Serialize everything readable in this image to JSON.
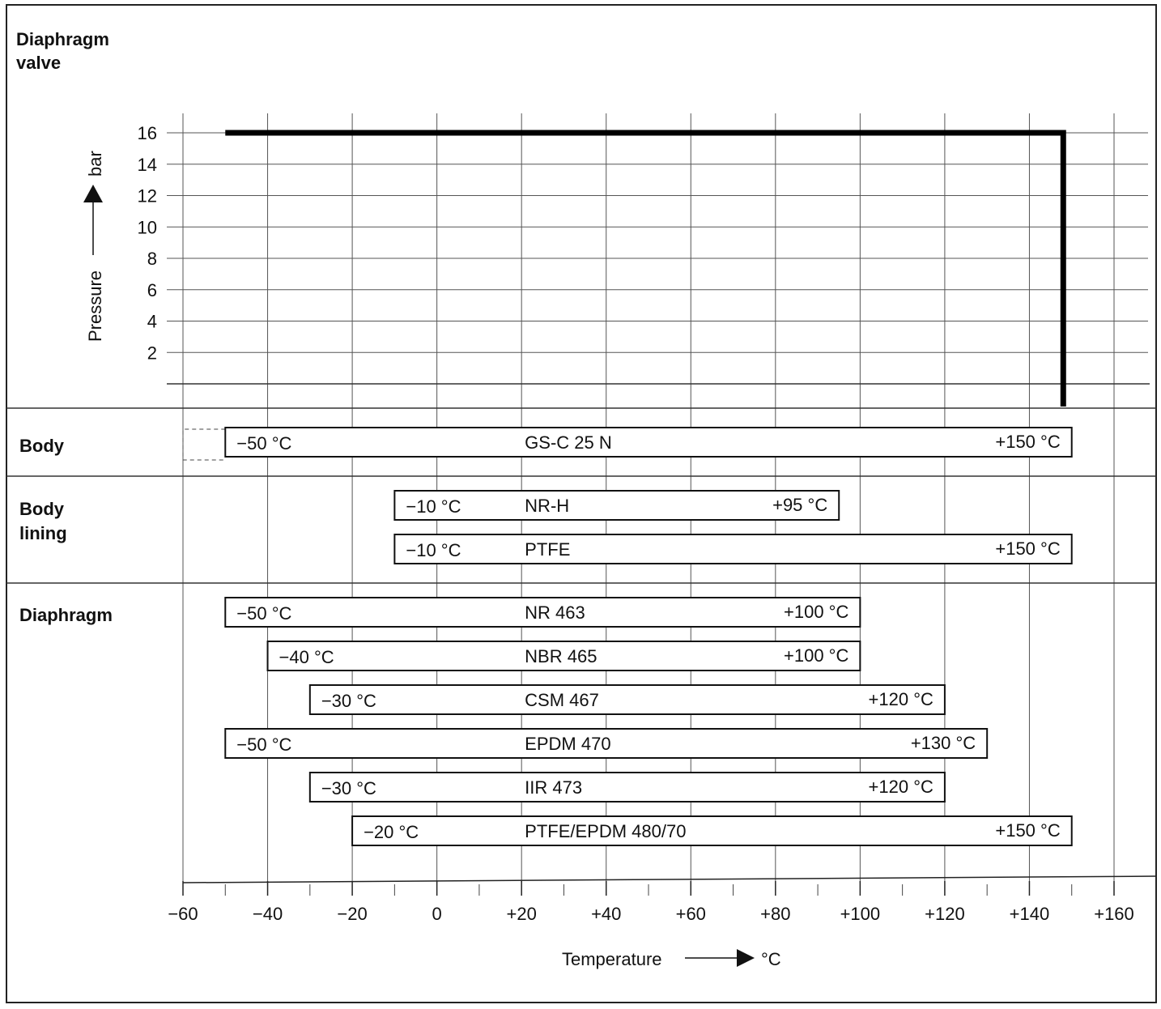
{
  "chart_data": {
    "type": "bar",
    "title": "Diaphragm valve",
    "pressure_axis": {
      "label": "Pressure",
      "unit": "bar",
      "ticks": [
        2,
        4,
        6,
        8,
        10,
        12,
        14,
        16
      ],
      "range": [
        0,
        16
      ]
    },
    "pressure_line": {
      "x": [
        -50,
        148,
        148
      ],
      "y": [
        16,
        16,
        0
      ]
    },
    "temperature_axis": {
      "label": "Temperature",
      "unit": "°C",
      "range": [
        -60,
        160
      ],
      "ticks": [
        "-60",
        "-40",
        "-20",
        "0",
        "+20",
        "+40",
        "+60",
        "+80",
        "+100",
        "+120",
        "+140",
        "+160"
      ]
    },
    "sections": [
      {
        "name": "Body",
        "bars": [
          {
            "material": "GS-C 25 N",
            "min": -50,
            "max": 150,
            "min_label": "−50 °C",
            "max_label": "+150 °C",
            "dashed_extension_to": -60
          }
        ]
      },
      {
        "name": "Body\nlining",
        "bars": [
          {
            "material": "NR-H",
            "min": -10,
            "max": 95,
            "min_label": "−10 °C",
            "max_label": "+95 °C"
          },
          {
            "material": "PTFE",
            "min": -10,
            "max": 150,
            "min_label": "−10 °C",
            "max_label": "+150 °C"
          }
        ]
      },
      {
        "name": "Diaphragm",
        "bars": [
          {
            "material": "NR 463",
            "min": -50,
            "max": 100,
            "min_label": "−50 °C",
            "max_label": "+100 °C"
          },
          {
            "material": "NBR 465",
            "min": -40,
            "max": 100,
            "min_label": "−40 °C",
            "max_label": "+100 °C"
          },
          {
            "material": "CSM 467",
            "min": -30,
            "max": 120,
            "min_label": "−30 °C",
            "max_label": "+120 °C"
          },
          {
            "material": "EPDM 470",
            "min": -50,
            "max": 130,
            "min_label": "−50 °C",
            "max_label": "+130 °C"
          },
          {
            "material": "IIR 473",
            "min": -30,
            "max": 120,
            "min_label": "−30 °C",
            "max_label": "+120 °C"
          },
          {
            "material": "PTFE/EPDM 480/70",
            "min": -20,
            "max": 150,
            "min_label": "−20 °C",
            "max_label": "+150 °C"
          }
        ]
      }
    ],
    "grid": true
  }
}
